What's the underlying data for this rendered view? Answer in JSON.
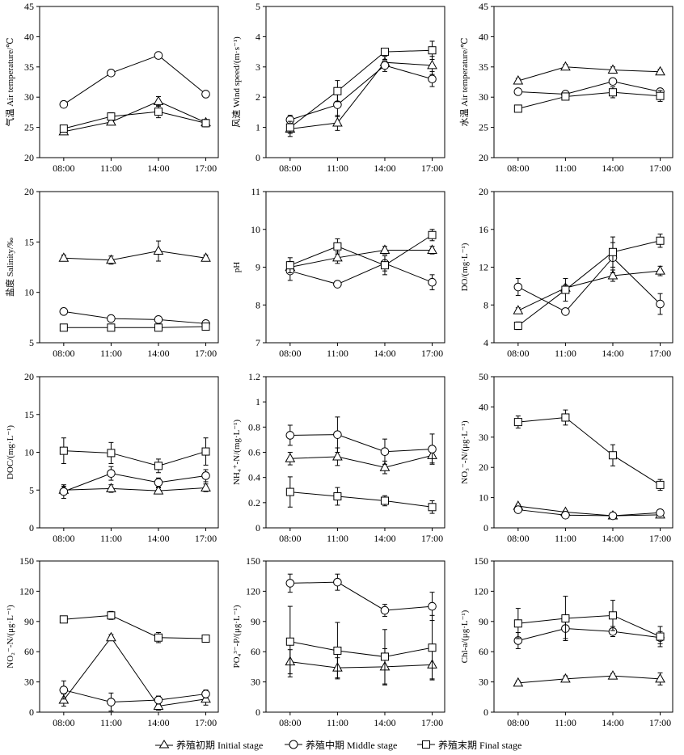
{
  "chart_data": [
    {
      "type": "line",
      "ylabel": "气温 Air temperature/℃",
      "x": [
        "08:00",
        "11:00",
        "14:00",
        "17:00"
      ],
      "ylim": [
        20,
        45
      ],
      "yticks": [
        20,
        25,
        30,
        35,
        40,
        45
      ],
      "series": [
        {
          "name": "养殖初期 Initial stage",
          "marker": "triangle",
          "values": [
            24.3,
            25.9,
            29.3,
            25.8
          ],
          "errors": [
            0.4,
            0.5,
            0.8,
            0.5
          ]
        },
        {
          "name": "养殖中期 Middle stage",
          "marker": "circle",
          "values": [
            28.8,
            34.0,
            36.9,
            30.5
          ],
          "errors": [
            0,
            0,
            0,
            0
          ]
        },
        {
          "name": "养殖末期 Final stage",
          "marker": "square",
          "values": [
            24.8,
            26.8,
            27.6,
            25.7
          ],
          "errors": [
            0.5,
            0.6,
            1.0,
            0.6
          ]
        }
      ]
    },
    {
      "type": "line",
      "ylabel": "风速 Wind speed/(m·s⁻¹)",
      "x": [
        "08:00",
        "11:00",
        "14:00",
        "17:00"
      ],
      "ylim": [
        0,
        5
      ],
      "yticks": [
        0,
        1,
        2,
        3,
        4,
        5
      ],
      "series": [
        {
          "name": "养殖初期 Initial stage",
          "marker": "triangle",
          "values": [
            0.95,
            1.15,
            3.15,
            3.05
          ],
          "errors": [
            0.25,
            0.25,
            0.2,
            0.3
          ]
        },
        {
          "name": "养殖中期 Middle stage",
          "marker": "circle",
          "values": [
            1.25,
            1.75,
            3.05,
            2.6
          ],
          "errors": [
            0.15,
            0.4,
            0.2,
            0.25
          ]
        },
        {
          "name": "养殖末期 Final stage",
          "marker": "square",
          "values": [
            1.0,
            2.2,
            3.5,
            3.55
          ],
          "errors": [
            0.2,
            0.35,
            0.05,
            0.3
          ]
        }
      ]
    },
    {
      "type": "line",
      "ylabel": "水温 Air temperature/℃",
      "x": [
        "08:00",
        "11:00",
        "14:00",
        "17:00"
      ],
      "ylim": [
        20,
        45
      ],
      "yticks": [
        20,
        25,
        30,
        35,
        40,
        45
      ],
      "series": [
        {
          "name": "养殖初期 Initial stage",
          "marker": "triangle",
          "values": [
            32.7,
            35.0,
            34.5,
            34.2
          ],
          "errors": [
            0.4,
            0.4,
            0.5,
            0.4
          ]
        },
        {
          "name": "养殖中期 Middle stage",
          "marker": "circle",
          "values": [
            30.9,
            30.5,
            32.6,
            30.9
          ],
          "errors": [
            0.4,
            0.4,
            0.5,
            0.4
          ]
        },
        {
          "name": "养殖末期 Final stage",
          "marker": "square",
          "values": [
            28.1,
            30.1,
            30.8,
            30.2
          ],
          "errors": [
            0.3,
            0.5,
            0.9,
            0.9
          ]
        }
      ]
    },
    {
      "type": "line",
      "ylabel": "盐度 Salinity/‰",
      "x": [
        "08:00",
        "11:00",
        "14:00",
        "17:00"
      ],
      "ylim": [
        5,
        20
      ],
      "yticks": [
        5,
        10,
        15,
        20
      ],
      "series": [
        {
          "name": "养殖初期 Initial stage",
          "marker": "triangle",
          "values": [
            13.4,
            13.2,
            14.1,
            13.4
          ],
          "errors": [
            0.3,
            0.4,
            1.0,
            0.3
          ]
        },
        {
          "name": "养殖中期 Middle stage",
          "marker": "circle",
          "values": [
            8.1,
            7.4,
            7.3,
            6.9
          ],
          "errors": [
            0.2,
            0.2,
            0.2,
            0.2
          ]
        },
        {
          "name": "养殖末期 Final stage",
          "marker": "square",
          "values": [
            6.5,
            6.5,
            6.5,
            6.6
          ],
          "errors": [
            0.1,
            0.1,
            0.1,
            0.1
          ]
        }
      ]
    },
    {
      "type": "line",
      "ylabel": "pH",
      "x": [
        "08:00",
        "11:00",
        "14:00",
        "17:00"
      ],
      "ylim": [
        7,
        11
      ],
      "yticks": [
        7,
        8,
        9,
        10,
        11
      ],
      "series": [
        {
          "name": "养殖初期 Initial stage",
          "marker": "triangle",
          "values": [
            9.0,
            9.25,
            9.45,
            9.45
          ],
          "errors": [
            0.15,
            0.15,
            0.1,
            0.1
          ]
        },
        {
          "name": "养殖中期 Middle stage",
          "marker": "circle",
          "values": [
            8.9,
            8.55,
            9.1,
            8.6
          ],
          "errors": [
            0.25,
            0,
            0.2,
            0.2
          ]
        },
        {
          "name": "养殖末期 Final stage",
          "marker": "square",
          "values": [
            9.05,
            9.55,
            9.05,
            9.85
          ],
          "errors": [
            0.2,
            0.2,
            0.25,
            0.15
          ]
        }
      ]
    },
    {
      "type": "line",
      "ylabel": "DO/(mg·L⁻¹)",
      "x": [
        "08:00",
        "11:00",
        "14:00",
        "17:00"
      ],
      "ylim": [
        4,
        20
      ],
      "yticks": [
        4,
        8,
        12,
        16,
        20
      ],
      "series": [
        {
          "name": "养殖初期 Initial stage",
          "marker": "triangle",
          "values": [
            7.4,
            9.8,
            11.1,
            11.6
          ],
          "errors": [
            0.3,
            0.3,
            0.6,
            0.5
          ]
        },
        {
          "name": "养殖中期 Middle stage",
          "marker": "circle",
          "values": [
            9.9,
            7.3,
            13.0,
            8.1
          ],
          "errors": [
            0.9,
            0,
            1.6,
            1.1
          ]
        },
        {
          "name": "养殖末期 Final stage",
          "marker": "square",
          "values": [
            5.8,
            9.6,
            13.6,
            14.8
          ],
          "errors": [
            0.4,
            1.2,
            1.6,
            0.7
          ]
        }
      ]
    },
    {
      "type": "line",
      "ylabel": "DOC/(mg·L⁻¹)",
      "x": [
        "08:00",
        "11:00",
        "14:00",
        "17:00"
      ],
      "ylim": [
        0,
        20
      ],
      "yticks": [
        0,
        5,
        10,
        15,
        20
      ],
      "series": [
        {
          "name": "养殖初期 Initial stage",
          "marker": "triangle",
          "values": [
            5.0,
            5.2,
            4.9,
            5.3
          ],
          "errors": [
            0.5,
            0.5,
            0.4,
            0.5
          ]
        },
        {
          "name": "养殖中期 Middle stage",
          "marker": "circle",
          "values": [
            4.8,
            7.2,
            6.0,
            6.9
          ],
          "errors": [
            0.9,
            0.9,
            0.6,
            0.8
          ]
        },
        {
          "name": "养殖末期 Final stage",
          "marker": "square",
          "values": [
            10.2,
            9.9,
            8.2,
            10.1
          ],
          "errors": [
            1.7,
            1.4,
            0.9,
            1.8
          ]
        }
      ]
    },
    {
      "type": "line",
      "ylabel": "NH₄⁺-N/(mg·L⁻¹)",
      "x": [
        "08:00",
        "11:00",
        "14:00",
        "17:00"
      ],
      "ylim": [
        0,
        1.2
      ],
      "yticks": [
        0,
        0.2,
        0.4,
        0.6,
        0.8,
        1.0,
        1.2
      ],
      "series": [
        {
          "name": "养殖初期 Initial stage",
          "marker": "triangle",
          "values": [
            0.55,
            0.565,
            0.48,
            0.575
          ],
          "errors": [
            0.05,
            0.07,
            0.05,
            0.06
          ]
        },
        {
          "name": "养殖中期 Middle stage",
          "marker": "circle",
          "values": [
            0.735,
            0.74,
            0.605,
            0.625
          ],
          "errors": [
            0.08,
            0.14,
            0.1,
            0.12
          ]
        },
        {
          "name": "养殖末期 Final stage",
          "marker": "square",
          "values": [
            0.285,
            0.25,
            0.215,
            0.165
          ],
          "errors": [
            0.12,
            0.07,
            0.04,
            0.05
          ]
        }
      ]
    },
    {
      "type": "line",
      "ylabel": "NO₃⁻-N/(μg·L⁻¹)",
      "x": [
        "08:00",
        "11:00",
        "14:00",
        "17:00"
      ],
      "ylim": [
        0,
        50
      ],
      "yticks": [
        0,
        10,
        20,
        30,
        40,
        50
      ],
      "series": [
        {
          "name": "养殖初期 Initial stage",
          "marker": "triangle",
          "values": [
            7.2,
            5.2,
            4.0,
            4.3
          ],
          "errors": [
            0.6,
            0.5,
            0.4,
            0.5
          ]
        },
        {
          "name": "养殖中期 Middle stage",
          "marker": "circle",
          "values": [
            6.0,
            4.2,
            4.0,
            5.0
          ],
          "errors": [
            0.6,
            0.5,
            0.4,
            0.5
          ]
        },
        {
          "name": "养殖末期 Final stage",
          "marker": "square",
          "values": [
            35.0,
            36.5,
            24.0,
            14.2
          ],
          "errors": [
            2.0,
            2.5,
            3.5,
            1.8
          ]
        }
      ]
    },
    {
      "type": "line",
      "ylabel": "NO₂⁻-N/(μg·L⁻¹)",
      "x": [
        "08:00",
        "11:00",
        "14:00",
        "17:00"
      ],
      "ylim": [
        0,
        150
      ],
      "yticks": [
        0,
        30,
        60,
        90,
        120,
        150
      ],
      "series": [
        {
          "name": "养殖初期 Initial stage",
          "marker": "triangle",
          "values": [
            12,
            74,
            6,
            13
          ],
          "errors": [
            6,
            3,
            4,
            6
          ]
        },
        {
          "name": "养殖中期 Middle stage",
          "marker": "circle",
          "values": [
            22,
            10,
            12,
            18
          ],
          "errors": [
            9,
            9,
            4,
            4
          ]
        },
        {
          "name": "养殖末期 Final stage",
          "marker": "square",
          "values": [
            92,
            96,
            74,
            73
          ],
          "errors": [
            2,
            4,
            5,
            2
          ]
        }
      ]
    },
    {
      "type": "line",
      "ylabel": "PO₄³⁻-P/(μg·L⁻¹)",
      "x": [
        "08:00",
        "11:00",
        "14:00",
        "17:00"
      ],
      "ylim": [
        0,
        150
      ],
      "yticks": [
        0,
        30,
        60,
        90,
        120,
        150
      ],
      "series": [
        {
          "name": "养殖初期 Initial stage",
          "marker": "triangle",
          "values": [
            50,
            44,
            45,
            47
          ],
          "errors": [
            12,
            10,
            18,
            14
          ]
        },
        {
          "name": "养殖中期 Middle stage",
          "marker": "circle",
          "values": [
            128,
            129,
            101,
            105
          ],
          "errors": [
            9,
            8,
            6,
            14
          ]
        },
        {
          "name": "养殖末期 Final stage",
          "marker": "square",
          "values": [
            70,
            61,
            55,
            64
          ],
          "errors": [
            35,
            28,
            27,
            32
          ]
        }
      ]
    },
    {
      "type": "line",
      "ylabel": "Chl-a/(μg·L⁻¹)",
      "x": [
        "08:00",
        "11:00",
        "14:00",
        "17:00"
      ],
      "ylim": [
        0,
        150
      ],
      "yticks": [
        0,
        30,
        60,
        90,
        120,
        150
      ],
      "series": [
        {
          "name": "养殖初期 Initial stage",
          "marker": "triangle",
          "values": [
            29,
            33,
            36,
            33
          ],
          "errors": [
            2,
            3,
            2,
            6
          ]
        },
        {
          "name": "养殖中期 Middle stage",
          "marker": "circle",
          "values": [
            71,
            83,
            80,
            74
          ],
          "errors": [
            8,
            10,
            5,
            6
          ]
        },
        {
          "name": "养殖末期 Final stage",
          "marker": "square",
          "values": [
            88,
            93,
            96,
            75
          ],
          "errors": [
            15,
            22,
            15,
            10
          ]
        }
      ]
    }
  ],
  "legend": [
    {
      "label": "养殖初期 Initial stage",
      "marker": "triangle"
    },
    {
      "label": "养殖中期 Middle stage",
      "marker": "circle"
    },
    {
      "label": "养殖末期 Final stage",
      "marker": "square"
    }
  ]
}
